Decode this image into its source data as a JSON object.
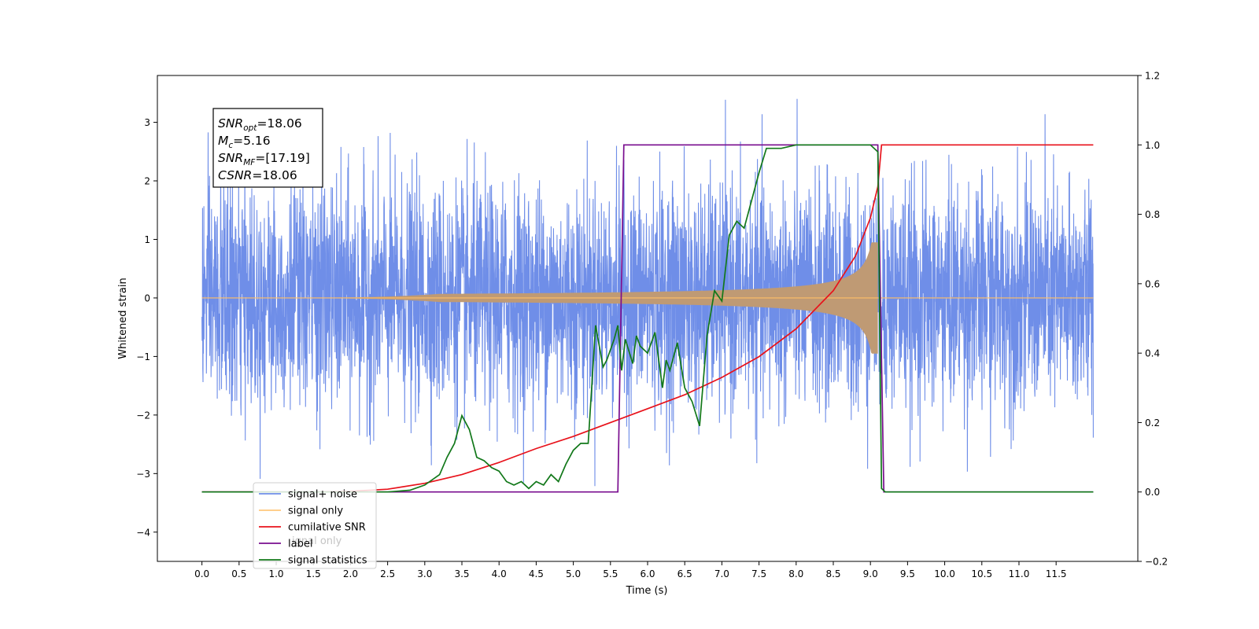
{
  "chart_data": {
    "type": "line",
    "xlabel": "Time (s)",
    "ylabel": "Whitened strain",
    "xlim": [
      -0.6,
      12.6
    ],
    "ylim": [
      -4.5,
      3.8
    ],
    "y2lim": [
      -0.2,
      1.2
    ],
    "x_ticks": [
      "0.0",
      "0.5",
      "1.0",
      "1.5",
      "2.0",
      "2.5",
      "3.0",
      "3.5",
      "4.0",
      "4.5",
      "5.0",
      "5.5",
      "6.0",
      "6.5",
      "7.0",
      "7.5",
      "8.0",
      "8.5",
      "9.0",
      "9.5",
      "10.0",
      "10.5",
      "11.0",
      "11.5"
    ],
    "y_ticks": [
      "3",
      "2",
      "1",
      "0",
      "−1",
      "−2",
      "−3",
      "−4"
    ],
    "y2_ticks": [
      "1.2",
      "1.0",
      "0.8",
      "0.6",
      "0.4",
      "0.2",
      "0.0",
      "−0.2"
    ],
    "annotation": {
      "lines": [
        {
          "sym": "SNR",
          "sub": "opt",
          "val": "=18.06"
        },
        {
          "sym": "M",
          "sub": "c",
          "val": "=5.16"
        },
        {
          "sym": "SNR",
          "sub": "MF",
          "val": "=[17.19]"
        },
        {
          "sym": "CSNR",
          "sub": "",
          "val": "=18.06"
        }
      ]
    },
    "legend": {
      "placement": "lower-left",
      "entries": [
        "signal+ noise",
        "signal only",
        "cumilative SNR",
        "label",
        "signal statistics"
      ],
      "ghost_text": "ignal only"
    },
    "colors": {
      "noise": "#6f8ee8",
      "signal": "#bf9a74",
      "signal_legend": "#ffbf66",
      "snr": "#e8121b",
      "label": "#7a0e8f",
      "stats": "#12781a"
    },
    "series": {
      "noise": {
        "t_start": 0.0,
        "t_end": 12.0,
        "amplitude_range": [
          -4.1,
          3.4
        ]
      },
      "signal_only": {
        "t_merger": 9.1,
        "amplitude_max": 0.95
      },
      "cumulative_snr": {
        "x": [
          0.0,
          1.5,
          2.0,
          2.5,
          3.0,
          3.5,
          4.0,
          4.5,
          5.0,
          5.5,
          6.0,
          6.5,
          7.0,
          7.5,
          8.0,
          8.5,
          8.8,
          9.0,
          9.1,
          9.15,
          12.0
        ],
        "y": [
          0.0,
          0.0,
          0.002,
          0.008,
          0.025,
          0.05,
          0.085,
          0.125,
          0.16,
          0.2,
          0.24,
          0.28,
          0.33,
          0.39,
          0.47,
          0.58,
          0.68,
          0.79,
          0.88,
          1.0,
          1.0
        ]
      },
      "label": {
        "x": [
          0.0,
          5.6,
          5.68,
          9.1,
          9.18,
          12.0
        ],
        "y": [
          0.0,
          0.0,
          1.0,
          1.0,
          0.0,
          0.0
        ]
      },
      "signal_statistics": {
        "x": [
          0.0,
          2.5,
          2.8,
          3.0,
          3.2,
          3.3,
          3.4,
          3.5,
          3.6,
          3.7,
          3.8,
          3.9,
          4.0,
          4.1,
          4.2,
          4.3,
          4.4,
          4.5,
          4.6,
          4.7,
          4.8,
          4.9,
          5.0,
          5.1,
          5.2,
          5.3,
          5.4,
          5.45,
          5.55,
          5.6,
          5.65,
          5.7,
          5.8,
          5.85,
          5.9,
          6.0,
          6.1,
          6.2,
          6.25,
          6.3,
          6.4,
          6.5,
          6.6,
          6.7,
          6.8,
          6.9,
          7.0,
          7.1,
          7.2,
          7.3,
          7.4,
          7.5,
          7.6,
          7.7,
          7.8,
          8.0,
          8.5,
          9.0,
          9.1,
          9.15,
          9.2,
          12.0
        ],
        "y": [
          0.0,
          0.0,
          0.005,
          0.02,
          0.05,
          0.1,
          0.14,
          0.22,
          0.18,
          0.1,
          0.09,
          0.07,
          0.06,
          0.03,
          0.02,
          0.03,
          0.01,
          0.03,
          0.02,
          0.05,
          0.03,
          0.08,
          0.12,
          0.14,
          0.14,
          0.48,
          0.36,
          0.38,
          0.44,
          0.48,
          0.35,
          0.44,
          0.37,
          0.45,
          0.42,
          0.4,
          0.46,
          0.3,
          0.38,
          0.35,
          0.43,
          0.3,
          0.26,
          0.19,
          0.45,
          0.58,
          0.55,
          0.74,
          0.78,
          0.76,
          0.84,
          0.92,
          0.99,
          0.99,
          0.99,
          1.0,
          1.0,
          1.0,
          0.98,
          0.01,
          0.0,
          0.0
        ]
      }
    }
  }
}
